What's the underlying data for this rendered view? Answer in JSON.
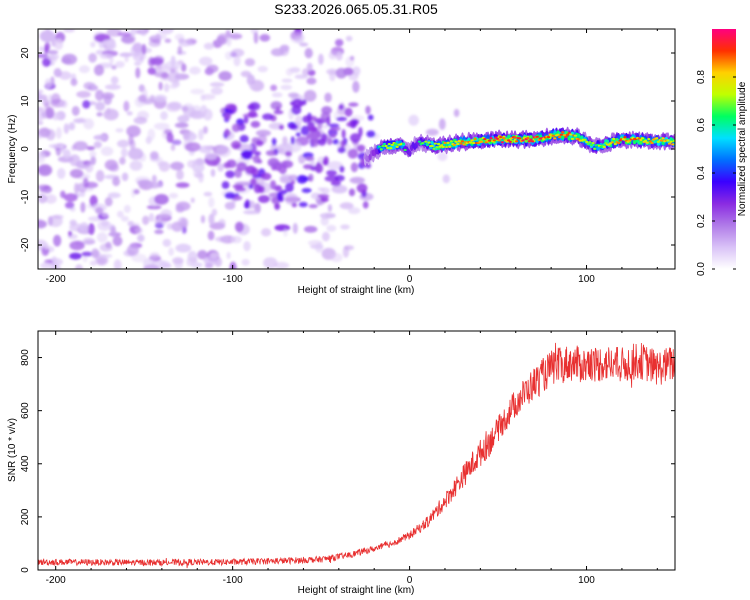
{
  "title": "S233.2026.065.05.31.R05",
  "chart_data": [
    {
      "type": "heatmap",
      "name": "spectrogram",
      "xlabel": "Height of straight line (km)",
      "ylabel": "Frequency (Hz)",
      "xlim": [
        -210,
        150
      ],
      "ylim": [
        -25,
        25
      ],
      "xticks": [
        -200,
        -100,
        0,
        100
      ],
      "yticks": [
        -20,
        -10,
        0,
        10,
        20
      ],
      "colorbar": {
        "label": "Normalized spectral amplitude",
        "range": [
          0,
          1
        ],
        "ticks": [
          0.0,
          0.2,
          0.4,
          0.6,
          0.8
        ],
        "colors": [
          "#ffffff",
          "#d9c2f7",
          "#b07be8",
          "#8a2be2",
          "#3a00ff",
          "#0070ff",
          "#00e0ff",
          "#00ff60",
          "#c0ff00",
          "#ffd000",
          "#ff3000",
          "#ff0080"
        ]
      },
      "signal_trace": {
        "x": [
          -25,
          -15,
          -5,
          0,
          5,
          15,
          30,
          50,
          70,
          85,
          95,
          105,
          120,
          150
        ],
        "freq": [
          -2,
          0.5,
          1,
          -0.5,
          1.5,
          0.5,
          1.5,
          2,
          2,
          3,
          2.5,
          0.5,
          2,
          1.5
        ],
        "amplitude": [
          0.35,
          0.7,
          0.75,
          0.55,
          0.6,
          0.8,
          0.85,
          0.95,
          0.95,
          0.9,
          0.85,
          0.7,
          0.9,
          0.8
        ]
      },
      "noise_region": {
        "x_range": [
          -210,
          -30
        ],
        "freq_range": [
          -25,
          25
        ],
        "amplitude_range": [
          0.05,
          0.25
        ]
      }
    },
    {
      "type": "line",
      "name": "snr",
      "xlabel": "Height of straight line (km)",
      "ylabel": "SNR (10 * v/v)",
      "xlim": [
        -210,
        150
      ],
      "ylim": [
        0,
        900
      ],
      "xticks": [
        -200,
        -100,
        0,
        100
      ],
      "yticks": [
        0,
        200,
        400,
        600,
        800
      ],
      "color": "#e83030",
      "series": [
        {
          "name": "SNR",
          "x": [
            -210,
            -150,
            -100,
            -70,
            -50,
            -35,
            -20,
            -10,
            0,
            10,
            20,
            30,
            40,
            50,
            60,
            70,
            80,
            85,
            90,
            100,
            110,
            120,
            130,
            140,
            150
          ],
          "values": [
            30,
            28,
            30,
            35,
            40,
            55,
            80,
            100,
            130,
            180,
            260,
            350,
            440,
            530,
            630,
            700,
            760,
            770,
            780,
            770,
            780,
            770,
            790,
            760,
            780
          ]
        }
      ]
    }
  ]
}
